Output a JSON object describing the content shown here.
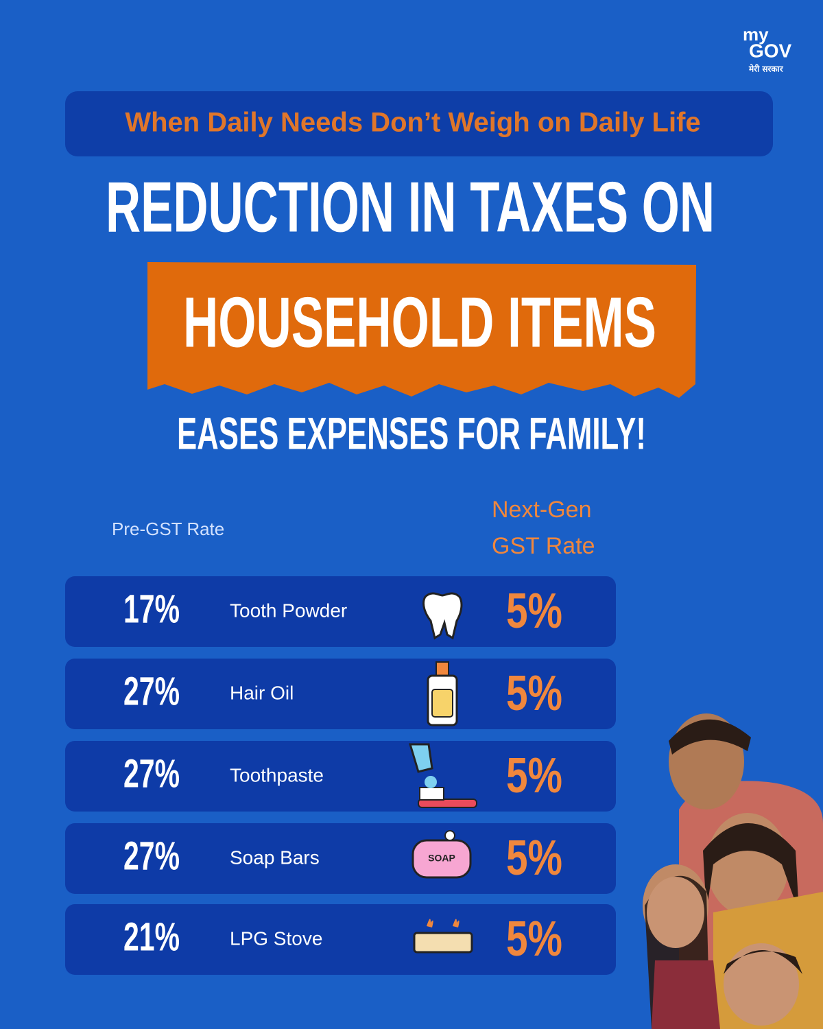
{
  "logo": {
    "line1": "my",
    "line2": "GOV",
    "tagline": "मेरी सरकार"
  },
  "banner": "When Daily Needs Don’t Weigh on Daily Life",
  "headline": {
    "line1": "REDUCTION IN TAXES ON",
    "highlight": "HOUSEHOLD ITEMS",
    "line3": "EASES EXPENSES FOR FAMILY!"
  },
  "table": {
    "header_old": "Pre-GST Rate",
    "header_new": [
      "Next-Gen",
      "GST Rate"
    ],
    "rows": [
      {
        "old": "17%",
        "item": "Tooth Powder",
        "new": "5%"
      },
      {
        "old": "27%",
        "item": "Hair Oil",
        "new": "5%"
      },
      {
        "old": "27%",
        "item": "Toothpaste",
        "new": "5%"
      },
      {
        "old": "27%",
        "item": "Soap Bars",
        "new": "5%"
      },
      {
        "old": "21%",
        "item": "LPG Stove",
        "new": "5%"
      }
    ]
  }
}
